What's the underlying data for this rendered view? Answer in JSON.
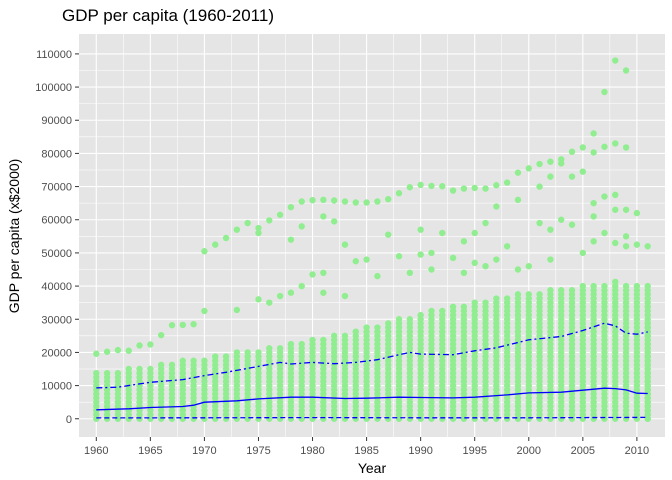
{
  "chart_data": {
    "type": "scatter",
    "title": "GDP per capita (1960-2011)",
    "xlabel": "Year",
    "ylabel": "GDP per capita (x$2000)",
    "xlim": [
      1958.4,
      2012.6
    ],
    "ylim": [
      -5500,
      116000
    ],
    "x_ticks": [
      1960,
      1965,
      1970,
      1975,
      1980,
      1985,
      1990,
      1995,
      2000,
      2005,
      2010
    ],
    "y_ticks": [
      0,
      10000,
      20000,
      30000,
      40000,
      50000,
      60000,
      70000,
      80000,
      90000,
      100000,
      110000
    ],
    "grid": true,
    "legend": "none",
    "colors": {
      "panel": "#e5e5e5",
      "grid_major": "#ffffff",
      "points": "#90ee90",
      "lines": "#0000ff"
    },
    "outlier_points": [
      {
        "x": 1960,
        "y": 19600
      },
      {
        "x": 1961,
        "y": 20200
      },
      {
        "x": 1962,
        "y": 20700
      },
      {
        "x": 1963,
        "y": 20500
      },
      {
        "x": 1964,
        "y": 22100
      },
      {
        "x": 1965,
        "y": 22400
      },
      {
        "x": 1966,
        "y": 25200
      },
      {
        "x": 1967,
        "y": 28200
      },
      {
        "x": 1968,
        "y": 28300
      },
      {
        "x": 1969,
        "y": 28500
      },
      {
        "x": 1970,
        "y": 50500
      },
      {
        "x": 1971,
        "y": 52500
      },
      {
        "x": 1972,
        "y": 54500
      },
      {
        "x": 1973,
        "y": 57000
      },
      {
        "x": 1974,
        "y": 59000
      },
      {
        "x": 1975,
        "y": 57500
      },
      {
        "x": 1975,
        "y": 56000
      },
      {
        "x": 1976,
        "y": 59800
      },
      {
        "x": 1977,
        "y": 61500
      },
      {
        "x": 1978,
        "y": 63800
      },
      {
        "x": 1979,
        "y": 65500
      },
      {
        "x": 1980,
        "y": 65900
      },
      {
        "x": 1981,
        "y": 66000
      },
      {
        "x": 1982,
        "y": 65800
      },
      {
        "x": 1983,
        "y": 65500
      },
      {
        "x": 1984,
        "y": 65200
      },
      {
        "x": 1985,
        "y": 65200
      },
      {
        "x": 1986,
        "y": 65500
      },
      {
        "x": 1987,
        "y": 66200
      },
      {
        "x": 1988,
        "y": 68000
      },
      {
        "x": 1989,
        "y": 69800
      },
      {
        "x": 1990,
        "y": 70500
      },
      {
        "x": 1991,
        "y": 70200
      },
      {
        "x": 1992,
        "y": 70100
      },
      {
        "x": 1993,
        "y": 68800
      },
      {
        "x": 1994,
        "y": 69400
      },
      {
        "x": 1995,
        "y": 69600
      },
      {
        "x": 1996,
        "y": 69400
      },
      {
        "x": 1997,
        "y": 70400
      },
      {
        "x": 1998,
        "y": 71200
      },
      {
        "x": 1999,
        "y": 74200
      },
      {
        "x": 2000,
        "y": 75500
      },
      {
        "x": 2001,
        "y": 76800
      },
      {
        "x": 2002,
        "y": 77500
      },
      {
        "x": 2003,
        "y": 78200
      },
      {
        "x": 2004,
        "y": 80500
      },
      {
        "x": 2005,
        "y": 81800
      },
      {
        "x": 2006,
        "y": 86000
      },
      {
        "x": 2006,
        "y": 80300
      },
      {
        "x": 2007,
        "y": 82000
      },
      {
        "x": 2007,
        "y": 98500
      },
      {
        "x": 2008,
        "y": 83000
      },
      {
        "x": 2008,
        "y": 108000
      },
      {
        "x": 2009,
        "y": 81800
      },
      {
        "x": 2009,
        "y": 105000
      },
      {
        "x": 1978,
        "y": 54000
      },
      {
        "x": 1979,
        "y": 58000
      },
      {
        "x": 1981,
        "y": 61000
      },
      {
        "x": 1982,
        "y": 59500
      },
      {
        "x": 1983,
        "y": 52500
      },
      {
        "x": 1987,
        "y": 55500
      },
      {
        "x": 1990,
        "y": 57000
      },
      {
        "x": 1992,
        "y": 56000
      },
      {
        "x": 1994,
        "y": 53500
      },
      {
        "x": 1995,
        "y": 56000
      },
      {
        "x": 1996,
        "y": 59000
      },
      {
        "x": 1997,
        "y": 64000
      },
      {
        "x": 1999,
        "y": 66000
      },
      {
        "x": 2001,
        "y": 70000
      },
      {
        "x": 2002,
        "y": 73000
      },
      {
        "x": 2003,
        "y": 77000
      },
      {
        "x": 2004,
        "y": 73000
      },
      {
        "x": 2005,
        "y": 74500
      },
      {
        "x": 2006,
        "y": 65000
      },
      {
        "x": 2007,
        "y": 67000
      },
      {
        "x": 2008,
        "y": 67500
      },
      {
        "x": 2009,
        "y": 63000
      },
      {
        "x": 2010,
        "y": 62000
      },
      {
        "x": 1975,
        "y": 36000
      },
      {
        "x": 1978,
        "y": 38000
      },
      {
        "x": 1980,
        "y": 43500
      },
      {
        "x": 1981,
        "y": 44000
      },
      {
        "x": 1984,
        "y": 47500
      },
      {
        "x": 1985,
        "y": 48000
      },
      {
        "x": 1988,
        "y": 49000
      },
      {
        "x": 1990,
        "y": 49500
      },
      {
        "x": 1991,
        "y": 50000
      },
      {
        "x": 1993,
        "y": 48500
      },
      {
        "x": 1995,
        "y": 47000
      },
      {
        "x": 1998,
        "y": 52000
      },
      {
        "x": 2001,
        "y": 59000
      },
      {
        "x": 2002,
        "y": 57000
      },
      {
        "x": 2003,
        "y": 60000
      },
      {
        "x": 2004,
        "y": 58500
      },
      {
        "x": 2006,
        "y": 61000
      },
      {
        "x": 2008,
        "y": 63000
      },
      {
        "x": 2009,
        "y": 52000
      },
      {
        "x": 2010,
        "y": 52500
      },
      {
        "x": 2011,
        "y": 52000
      },
      {
        "x": 1970,
        "y": 32500
      },
      {
        "x": 1973,
        "y": 32800
      },
      {
        "x": 1976,
        "y": 35000
      },
      {
        "x": 1977,
        "y": 37000
      },
      {
        "x": 1979,
        "y": 40000
      },
      {
        "x": 1981,
        "y": 38000
      },
      {
        "x": 1983,
        "y": 37000
      },
      {
        "x": 1986,
        "y": 43000
      },
      {
        "x": 1989,
        "y": 44000
      },
      {
        "x": 1991,
        "y": 45000
      },
      {
        "x": 1994,
        "y": 44000
      },
      {
        "x": 1996,
        "y": 46000
      },
      {
        "x": 1997,
        "y": 48000
      },
      {
        "x": 1999,
        "y": 45000
      },
      {
        "x": 2000,
        "y": 46000
      },
      {
        "x": 2002,
        "y": 48000
      },
      {
        "x": 2005,
        "y": 50000
      },
      {
        "x": 2006,
        "y": 53500
      },
      {
        "x": 2007,
        "y": 56000
      },
      {
        "x": 2008,
        "y": 53000
      },
      {
        "x": 2009,
        "y": 55000
      }
    ],
    "band_points": {
      "x_start": 1960,
      "x_end": 2011,
      "y_step": 1250,
      "upper_envelope": [
        {
          "x": 1960,
          "y": 14000
        },
        {
          "x": 1965,
          "y": 16000
        },
        {
          "x": 1970,
          "y": 18500
        },
        {
          "x": 1975,
          "y": 21000
        },
        {
          "x": 1980,
          "y": 24000
        },
        {
          "x": 1985,
          "y": 27500
        },
        {
          "x": 1990,
          "y": 32000
        },
        {
          "x": 1995,
          "y": 35500
        },
        {
          "x": 2000,
          "y": 38000
        },
        {
          "x": 2005,
          "y": 40000
        },
        {
          "x": 2008,
          "y": 41500
        },
        {
          "x": 2011,
          "y": 40000
        }
      ],
      "right_column_cap": 29000
    },
    "series": [
      {
        "line": "dashed-upper",
        "values": [
          {
            "x": 1960,
            "y": 9300
          },
          {
            "x": 1962,
            "y": 9500
          },
          {
            "x": 1964,
            "y": 10500
          },
          {
            "x": 1965,
            "y": 11000
          },
          {
            "x": 1968,
            "y": 11800
          },
          {
            "x": 1970,
            "y": 13000
          },
          {
            "x": 1972,
            "y": 14000
          },
          {
            "x": 1975,
            "y": 15800
          },
          {
            "x": 1977,
            "y": 17000
          },
          {
            "x": 1978,
            "y": 16500
          },
          {
            "x": 1980,
            "y": 17000
          },
          {
            "x": 1982,
            "y": 16600
          },
          {
            "x": 1984,
            "y": 17000
          },
          {
            "x": 1986,
            "y": 17800
          },
          {
            "x": 1988,
            "y": 19300
          },
          {
            "x": 1989,
            "y": 20000
          },
          {
            "x": 1990,
            "y": 19500
          },
          {
            "x": 1993,
            "y": 19300
          },
          {
            "x": 1995,
            "y": 20500
          },
          {
            "x": 1997,
            "y": 21400
          },
          {
            "x": 1999,
            "y": 23000
          },
          {
            "x": 2000,
            "y": 23800
          },
          {
            "x": 2003,
            "y": 24800
          },
          {
            "x": 2005,
            "y": 26600
          },
          {
            "x": 2007,
            "y": 28800
          },
          {
            "x": 2008,
            "y": 28000
          },
          {
            "x": 2009,
            "y": 25800
          },
          {
            "x": 2010,
            "y": 25500
          },
          {
            "x": 2011,
            "y": 26200
          }
        ]
      },
      {
        "line": "solid-middle",
        "values": [
          {
            "x": 1960,
            "y": 2700
          },
          {
            "x": 1963,
            "y": 3000
          },
          {
            "x": 1965,
            "y": 3400
          },
          {
            "x": 1968,
            "y": 3700
          },
          {
            "x": 1969,
            "y": 4100
          },
          {
            "x": 1970,
            "y": 5000
          },
          {
            "x": 1973,
            "y": 5400
          },
          {
            "x": 1975,
            "y": 6000
          },
          {
            "x": 1978,
            "y": 6500
          },
          {
            "x": 1980,
            "y": 6500
          },
          {
            "x": 1983,
            "y": 6100
          },
          {
            "x": 1985,
            "y": 6200
          },
          {
            "x": 1988,
            "y": 6500
          },
          {
            "x": 1990,
            "y": 6400
          },
          {
            "x": 1993,
            "y": 6300
          },
          {
            "x": 1995,
            "y": 6500
          },
          {
            "x": 1998,
            "y": 7200
          },
          {
            "x": 2000,
            "y": 7800
          },
          {
            "x": 2003,
            "y": 8000
          },
          {
            "x": 2005,
            "y": 8600
          },
          {
            "x": 2007,
            "y": 9200
          },
          {
            "x": 2008,
            "y": 9100
          },
          {
            "x": 2009,
            "y": 8700
          },
          {
            "x": 2010,
            "y": 7700
          },
          {
            "x": 2011,
            "y": 7600
          }
        ]
      },
      {
        "line": "dashed-lower",
        "values": [
          {
            "x": 1960,
            "y": 250
          },
          {
            "x": 1970,
            "y": 300
          },
          {
            "x": 1980,
            "y": 350
          },
          {
            "x": 1990,
            "y": 300
          },
          {
            "x": 2000,
            "y": 300
          },
          {
            "x": 2005,
            "y": 350
          },
          {
            "x": 2011,
            "y": 400
          }
        ]
      }
    ]
  }
}
